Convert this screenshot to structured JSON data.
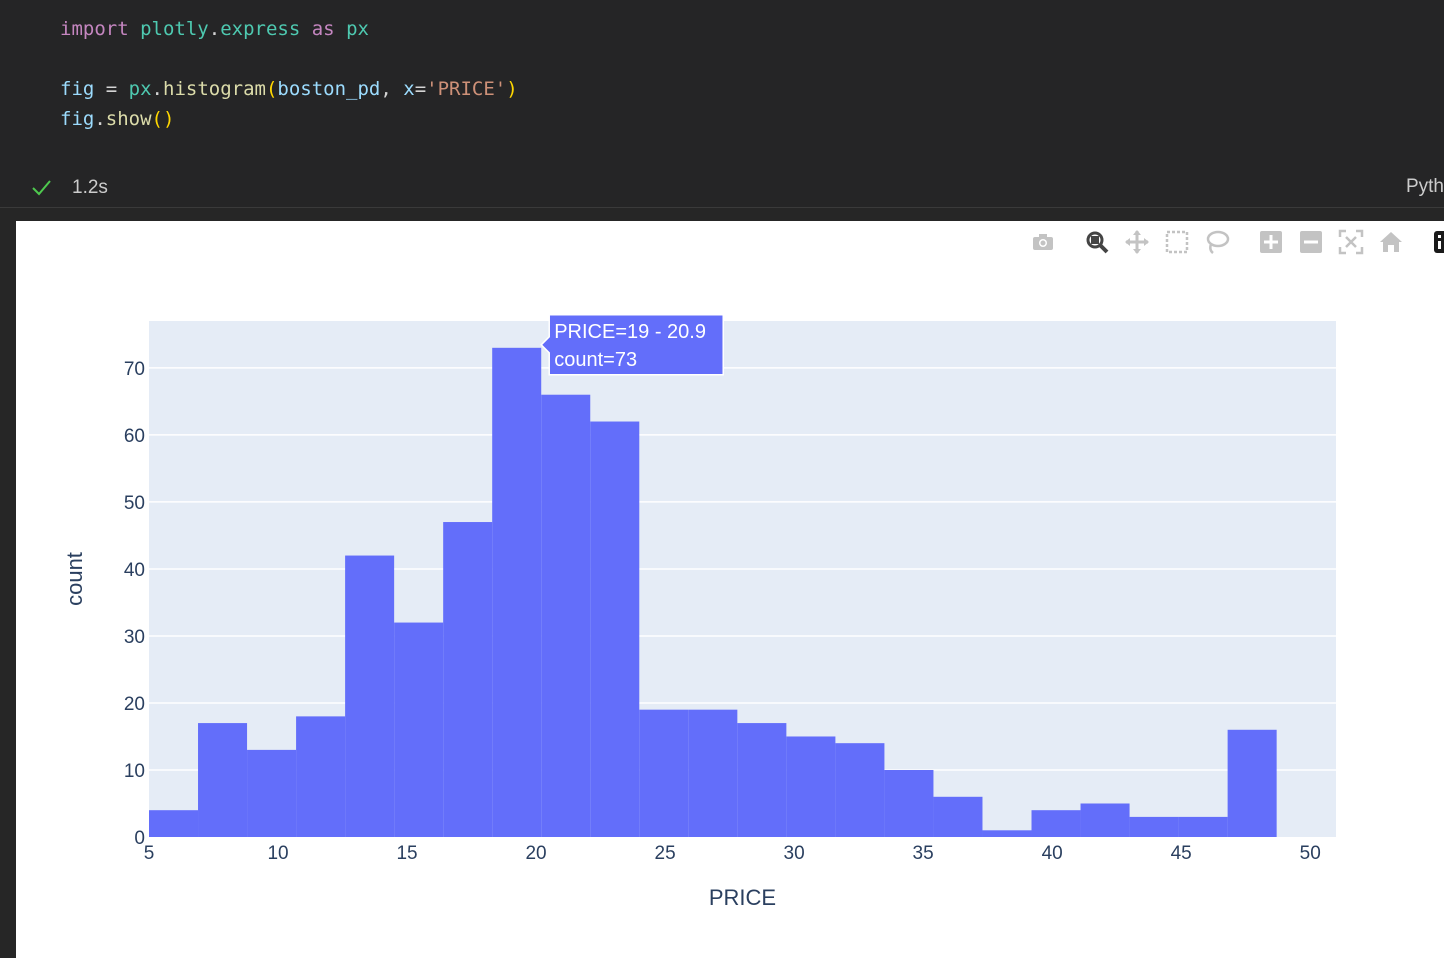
{
  "cell": {
    "code_lines": [
      [
        {
          "t": "import",
          "c": "kw"
        },
        {
          "t": " ",
          "c": "op"
        },
        {
          "t": "plotly",
          "c": "mod"
        },
        {
          "t": ".",
          "c": "op"
        },
        {
          "t": "express",
          "c": "mod"
        },
        {
          "t": " ",
          "c": "op"
        },
        {
          "t": "as",
          "c": "kw"
        },
        {
          "t": " ",
          "c": "op"
        },
        {
          "t": "px",
          "c": "mod"
        }
      ],
      [],
      [
        {
          "t": "fig",
          "c": "var"
        },
        {
          "t": " = ",
          "c": "op"
        },
        {
          "t": "px",
          "c": "mod"
        },
        {
          "t": ".",
          "c": "op"
        },
        {
          "t": "histogram",
          "c": "fn"
        },
        {
          "t": "(",
          "c": "par"
        },
        {
          "t": "boston_pd",
          "c": "var"
        },
        {
          "t": ", ",
          "c": "op"
        },
        {
          "t": "x",
          "c": "var"
        },
        {
          "t": "=",
          "c": "op"
        },
        {
          "t": "'PRICE'",
          "c": "str"
        },
        {
          "t": ")",
          "c": "par"
        }
      ],
      [
        {
          "t": "fig",
          "c": "var"
        },
        {
          "t": ".",
          "c": "op"
        },
        {
          "t": "show",
          "c": "fn"
        },
        {
          "t": "()",
          "c": "par"
        }
      ]
    ],
    "status_time": "1.2s",
    "language_label": "Pyth",
    "status_icon": "check-icon",
    "status_color": "#4ec94e"
  },
  "modebar": {
    "icons": [
      "camera-icon",
      "zoom-icon",
      "pan-icon",
      "box-select-icon",
      "lasso-select-icon",
      "zoom-in-icon",
      "zoom-out-icon",
      "autoscale-icon",
      "reset-axes-icon",
      "plotly-logo-icon"
    ]
  },
  "tooltip": {
    "line1": "PRICE=19 - 20.9",
    "line2": "count=73"
  },
  "chart_data": {
    "type": "bar",
    "title": "",
    "xlabel": "PRICE",
    "ylabel": "count",
    "bin_start": 5,
    "bin_width": 1.9,
    "x_range": [
      5,
      51
    ],
    "y_range": [
      0,
      77
    ],
    "x_ticks": [
      5,
      10,
      15,
      20,
      25,
      30,
      35,
      40,
      45,
      50
    ],
    "y_ticks": [
      0,
      10,
      20,
      30,
      40,
      50,
      60,
      70
    ],
    "values": [
      4,
      17,
      13,
      18,
      42,
      32,
      47,
      73,
      66,
      62,
      19,
      19,
      17,
      15,
      14,
      10,
      6,
      1,
      4,
      5,
      3,
      3,
      16
    ],
    "bar_color": "#636efa",
    "plot_bg": "#e5ecf6",
    "grid": true,
    "hovered_bin_index": 7
  }
}
